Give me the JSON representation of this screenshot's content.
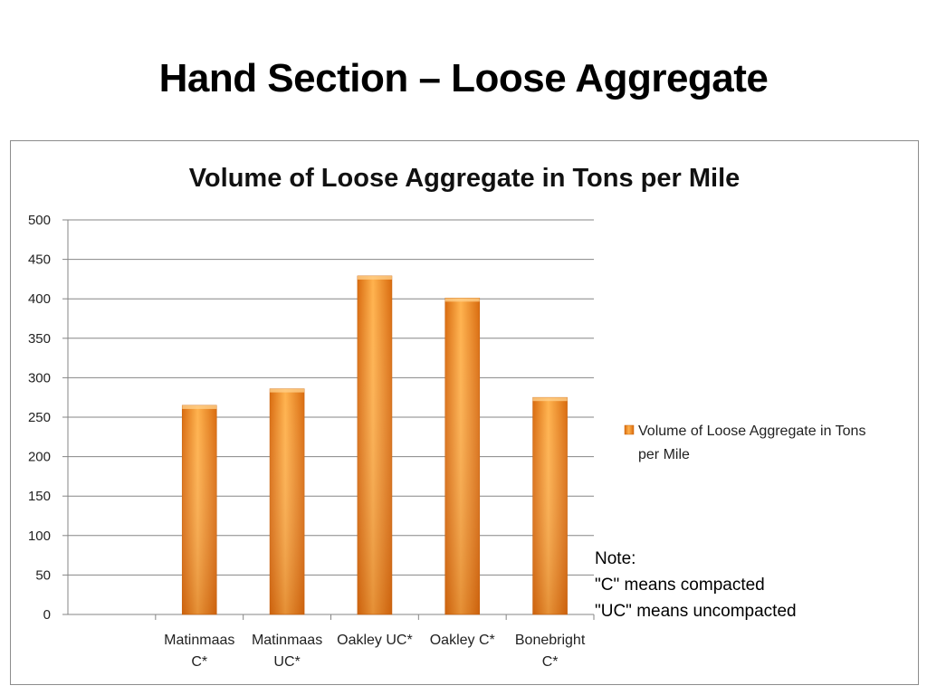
{
  "slide": {
    "title": "Hand Section – Loose Aggregate"
  },
  "chart_data": {
    "type": "bar",
    "title": "Volume of Loose Aggregate in Tons per Mile",
    "xlabel": "",
    "ylabel": "",
    "ylim": [
      0,
      500
    ],
    "yticks": [
      0,
      50,
      100,
      150,
      200,
      250,
      300,
      350,
      400,
      450,
      500
    ],
    "categories": [
      [
        "",
        ""
      ],
      [
        "Matinmaas",
        "C*"
      ],
      [
        "Matinmaas",
        "UC*"
      ],
      [
        "Oakley UC*",
        ""
      ],
      [
        "Oakley C*",
        ""
      ],
      [
        "Bonebright",
        "C*"
      ]
    ],
    "series": [
      {
        "name": "Volume of Loose Aggregate in Tons per Mile",
        "values": [
          null,
          265,
          286,
          429,
          401,
          275
        ]
      }
    ],
    "legend": {
      "position": "right",
      "lines": [
        "Volume of Loose Aggregate in Tons",
        "per Mile"
      ]
    },
    "grid": true,
    "colors": {
      "bar_light": "#ffb24d",
      "bar_mid": "#f7941d",
      "bar_dark": "#d96b0e",
      "grid": "#868686"
    },
    "annotation": {
      "lines": [
        "Note:",
        "\"C\" means compacted",
        "\"UC\" means uncompacted"
      ]
    }
  }
}
